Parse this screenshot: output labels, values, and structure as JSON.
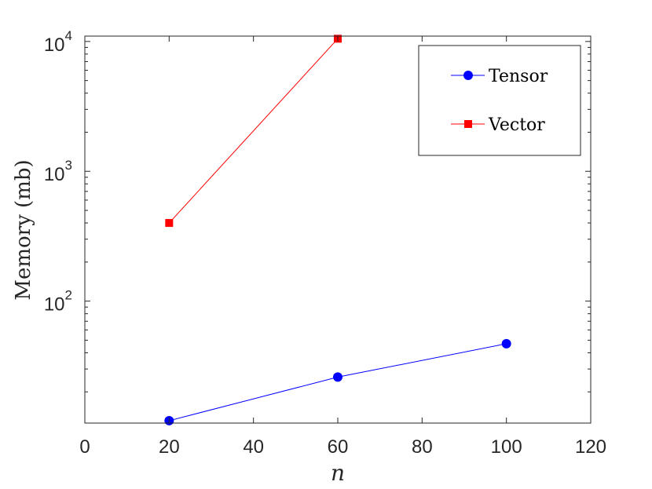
{
  "chart_data": {
    "type": "line",
    "xlabel": "n",
    "ylabel": "Memory (mb)",
    "xlim": [
      0,
      120
    ],
    "ylim": [
      11.5,
      11000
    ],
    "yscale": "log",
    "xticks": [
      0,
      20,
      40,
      60,
      80,
      100,
      120
    ],
    "yticks": [
      {
        "value": 100,
        "base": "10",
        "exp": "2"
      },
      {
        "value": 1000,
        "base": "10",
        "exp": "3"
      },
      {
        "value": 10000,
        "base": "10",
        "exp": "4"
      }
    ],
    "grid": false,
    "legend_position": "top-right",
    "series": [
      {
        "name": "Tensor",
        "color": "#0000ff",
        "marker": "circle",
        "x": [
          20,
          60,
          100
        ],
        "y": [
          12,
          26,
          47
        ]
      },
      {
        "name": "Vector",
        "color": "#ff0000",
        "marker": "square",
        "x": [
          20,
          60
        ],
        "y": [
          400,
          10500
        ]
      }
    ]
  }
}
